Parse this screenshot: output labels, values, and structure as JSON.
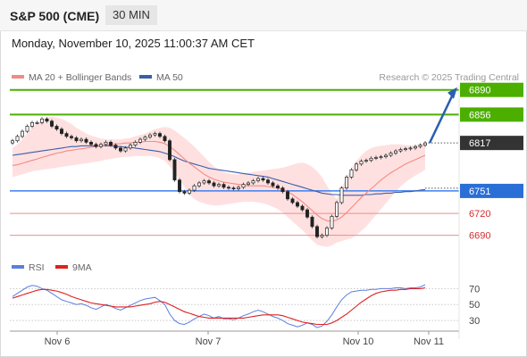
{
  "header": {
    "title": "S&P 500 (CME)",
    "timeframe": "30 MIN"
  },
  "datetime": "Monday, November 10, 2025 11:00:37 AM CET",
  "colors": {
    "up": "#2e7d32",
    "bull_line": "#4caf00",
    "pivot": "#3d7ff0",
    "bear_line": "#f08b8b",
    "bear_text": "#d32f2f",
    "ma20": "#f28b82",
    "ma50": "#3a5ea8",
    "band": "#ffd6d6",
    "rsi": "#5b7fe0",
    "rsi_ma": "#e02020"
  },
  "chart_data": {
    "type": "line",
    "legend": [
      {
        "name": "MA 20 + Bollinger Bands",
        "color": "#f28b82"
      },
      {
        "name": "MA 50",
        "color": "#3a5ea8"
      }
    ],
    "copyright": "Research © 2025 Trading Central",
    "ylim": [
      6676,
      6897
    ],
    "levels": [
      {
        "value": 6890,
        "label": "6890",
        "kind": "target"
      },
      {
        "value": 6856,
        "label": "6856",
        "kind": "target"
      },
      {
        "value": 6817,
        "label": "6817",
        "kind": "last"
      },
      {
        "value": 6751,
        "label": "6751",
        "kind": "pivot"
      },
      {
        "value": 6720,
        "label": "6720",
        "kind": "support"
      },
      {
        "value": 6690,
        "label": "6690",
        "kind": "support"
      }
    ],
    "x_labels": [
      "Nov 6",
      "Nov 7",
      "Nov 10",
      "Nov 11"
    ],
    "close": [
      6820,
      6826,
      6833,
      6840,
      6845,
      6845,
      6850,
      6847,
      6840,
      6836,
      6830,
      6826,
      6824,
      6820,
      6822,
      6818,
      6815,
      6812,
      6815,
      6818,
      6814,
      6810,
      6806,
      6810,
      6814,
      6818,
      6822,
      6825,
      6828,
      6830,
      6826,
      6820,
      6794,
      6766,
      6750,
      6748,
      6752,
      6758,
      6762,
      6765,
      6762,
      6758,
      6760,
      6756,
      6755,
      6754,
      6756,
      6760,
      6762,
      6765,
      6768,
      6766,
      6762,
      6758,
      6755,
      6750,
      6740,
      6735,
      6730,
      6725,
      6715,
      6702,
      6688,
      6690,
      6700,
      6716,
      6735,
      6755,
      6770,
      6780,
      6788,
      6792,
      6793,
      6796,
      6797,
      6798,
      6800,
      6803,
      6806,
      6808,
      6809,
      6810,
      6812,
      6814,
      6817
    ],
    "ma20": [
      6786,
      6787,
      6789,
      6791,
      6793,
      6795,
      6797,
      6799,
      6801,
      6803,
      6804,
      6806,
      6807,
      6808,
      6809,
      6810,
      6811,
      6812,
      6813,
      6814,
      6815,
      6816,
      6816,
      6817,
      6817,
      6818,
      6818,
      6819,
      6819,
      6819,
      6818,
      6816,
      6812,
      6807,
      6801,
      6795,
      6789,
      6784,
      6779,
      6774,
      6770,
      6767,
      6765,
      6763,
      6762,
      6761,
      6760,
      6759,
      6758,
      6758,
      6758,
      6758,
      6757,
      6756,
      6755,
      6753,
      6750,
      6746,
      6741,
      6736,
      6730,
      6724,
      6718,
      6713,
      6710,
      6709,
      6711,
      6715,
      6721,
      6728,
      6735,
      6742,
      6748,
      6754,
      6760,
      6766,
      6771,
      6776,
      6780,
      6784,
      6788,
      6791,
      6794,
      6797,
      6800
    ],
    "bb_upper": [
      6810,
      6815,
      6822,
      6830,
      6838,
      6845,
      6850,
      6852,
      6853,
      6852,
      6850,
      6847,
      6843,
      6838,
      6834,
      6830,
      6827,
      6825,
      6823,
      6822,
      6822,
      6822,
      6822,
      6823,
      6824,
      6826,
      6828,
      6830,
      6833,
      6836,
      6838,
      6839,
      6838,
      6834,
      6829,
      6824,
      6818,
      6812,
      6805,
      6798,
      6791,
      6785,
      6780,
      6777,
      6775,
      6774,
      6774,
      6775,
      6776,
      6777,
      6778,
      6779,
      6780,
      6781,
      6782,
      6783,
      6785,
      6787,
      6789,
      6790,
      6788,
      6784,
      6778,
      6770,
      6758,
      6748,
      6740,
      6755,
      6770,
      6782,
      6792,
      6800,
      6806,
      6810,
      6812,
      6813,
      6814,
      6815,
      6815,
      6815,
      6814,
      6814,
      6814,
      6815,
      6818
    ],
    "bb_lower": [
      6770,
      6772,
      6774,
      6776,
      6778,
      6779,
      6780,
      6781,
      6782,
      6783,
      6784,
      6785,
      6786,
      6787,
      6788,
      6789,
      6790,
      6791,
      6792,
      6794,
      6795,
      6796,
      6797,
      6798,
      6798,
      6799,
      6799,
      6799,
      6799,
      6798,
      6796,
      6792,
      6785,
      6776,
      6766,
      6756,
      6746,
      6740,
      6736,
      6734,
      6732,
      6731,
      6731,
      6732,
      6733,
      6734,
      6735,
      6736,
      6736,
      6736,
      6735,
      6734,
      6732,
      6729,
      6726,
      6721,
      6715,
      6709,
      6703,
      6697,
      6690,
      6683,
      6677,
      6675,
      6674,
      6676,
      6680,
      6682,
      6684,
      6686,
      6690,
      6696,
      6702,
      6710,
      6718,
      6726,
      6734,
      6742,
      6750,
      6757,
      6763,
      6768,
      6772,
      6776,
      6780
    ],
    "ma50": [
      6800,
      6801,
      6802,
      6803,
      6804,
      6805,
      6806,
      6807,
      6808,
      6809,
      6810,
      6811,
      6812,
      6812,
      6813,
      6813,
      6813,
      6813,
      6813,
      6813,
      6813,
      6812,
      6812,
      6811,
      6811,
      6810,
      6809,
      6808,
      6807,
      6806,
      6805,
      6803,
      6801,
      6798,
      6795,
      6792,
      6790,
      6788,
      6786,
      6784,
      6782,
      6781,
      6780,
      6779,
      6778,
      6777,
      6776,
      6775,
      6774,
      6773,
      6772,
      6771,
      6770,
      6768,
      6766,
      6764,
      6762,
      6760,
      6758,
      6756,
      6754,
      6752,
      6750,
      6748,
      6747,
      6746,
      6746,
      6745,
      6745,
      6745,
      6745,
      6745,
      6746,
      6746,
      6747,
      6747,
      6748,
      6748,
      6749,
      6749,
      6750,
      6750,
      6751,
      6752,
      6753
    ],
    "rsi": {
      "legend": [
        "RSI",
        "9MA"
      ],
      "ylim": [
        20,
        85
      ],
      "ticks": [
        70,
        50,
        30
      ],
      "rsi": [
        60,
        64,
        68,
        72,
        74,
        73,
        70,
        68,
        64,
        60,
        56,
        54,
        52,
        50,
        51,
        49,
        46,
        44,
        47,
        50,
        48,
        45,
        43,
        46,
        49,
        52,
        55,
        57,
        58,
        59,
        55,
        50,
        38,
        30,
        26,
        25,
        28,
        32,
        35,
        38,
        36,
        33,
        35,
        32,
        32,
        31,
        33,
        36,
        38,
        41,
        43,
        41,
        38,
        35,
        33,
        30,
        26,
        24,
        22,
        24,
        27,
        25,
        21,
        23,
        29,
        37,
        47,
        56,
        62,
        66,
        67,
        68,
        68,
        69,
        69,
        70,
        70,
        70,
        71,
        71,
        70,
        71,
        71,
        72,
        75
      ],
      "ma": [
        58,
        60,
        62,
        64,
        66,
        68,
        69,
        69,
        68,
        67,
        65,
        63,
        60,
        58,
        56,
        54,
        52,
        51,
        50,
        49,
        48,
        47,
        47,
        47,
        47,
        48,
        49,
        50,
        51,
        53,
        54,
        53,
        50,
        47,
        44,
        41,
        39,
        37,
        35,
        34,
        33,
        33,
        33,
        33,
        33,
        33,
        33,
        33,
        34,
        35,
        36,
        37,
        37,
        37,
        37,
        36,
        34,
        32,
        30,
        28,
        27,
        26,
        25,
        25,
        25,
        27,
        30,
        34,
        38,
        43,
        48,
        53,
        57,
        61,
        64,
        66,
        67,
        68,
        68,
        69,
        69,
        70,
        70,
        70,
        71
      ]
    }
  }
}
